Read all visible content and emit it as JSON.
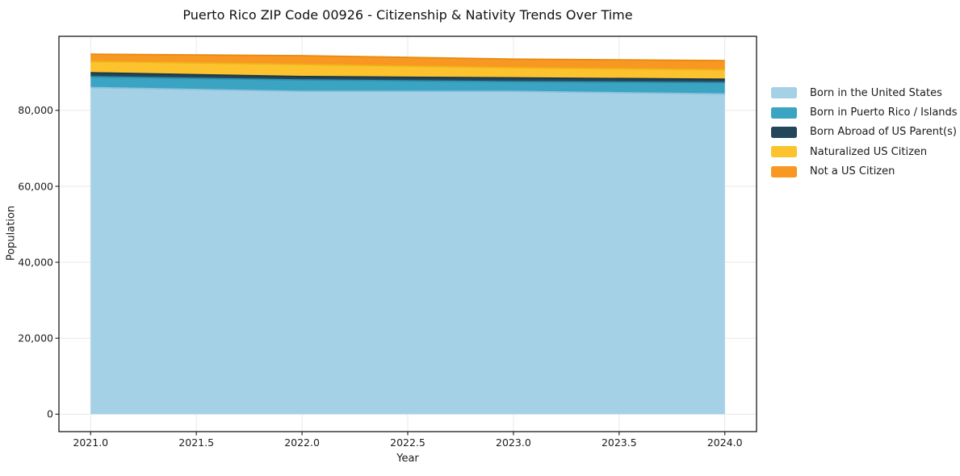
{
  "chart_data": {
    "type": "area",
    "stacked": true,
    "title": "Puerto Rico ZIP Code 00926 - Citizenship & Nativity Trends Over Time",
    "xlabel": "Year",
    "ylabel": "Population",
    "x": [
      2021,
      2022,
      2023,
      2024
    ],
    "series": [
      {
        "name": "Born in the United States",
        "color": "#a5d1e7",
        "edge_color": "#8cc1db",
        "values": [
          86000,
          85000,
          85000,
          84300
        ]
      },
      {
        "name": "Born in Puerto Rico / Islands",
        "color": "#3ba4c3",
        "edge_color": "#2c90ad",
        "values": [
          2850,
          3000,
          2550,
          3000
        ]
      },
      {
        "name": "Born Abroad of US Parent(s)",
        "color": "#24465a",
        "edge_color": "#1b3848",
        "values": [
          1050,
          900,
          1000,
          900
        ]
      },
      {
        "name": "Naturalized US Citizen",
        "color": "#fcc32e",
        "edge_color": "#eeb218",
        "values": [
          3000,
          3200,
          2700,
          2500
        ]
      },
      {
        "name": "Not a US Citizen",
        "color": "#f89722",
        "edge_color": "#e88a0e",
        "values": [
          1900,
          2300,
          2250,
          2400
        ]
      }
    ],
    "xlim": [
      2020.85,
      2024.15
    ],
    "ylim": [
      -4600,
      99500
    ],
    "x_ticks": {
      "values": [
        2021.0,
        2021.5,
        2022.0,
        2022.5,
        2023.0,
        2023.5,
        2024.0
      ],
      "labels": [
        "2021.0",
        "2021.5",
        "2022.0",
        "2022.5",
        "2023.0",
        "2023.5",
        "2024.0"
      ]
    },
    "y_ticks": {
      "values": [
        0,
        20000,
        40000,
        60000,
        80000
      ],
      "labels": [
        "0",
        "20,000",
        "40,000",
        "60,000",
        "80,000"
      ]
    },
    "grid": true,
    "legend_position": "outside-right-top"
  },
  "colors": {
    "grid": "#e8e8e8",
    "axis": "#1a1a1a",
    "text": "#1c1c1c",
    "background": "#ffffff"
  }
}
